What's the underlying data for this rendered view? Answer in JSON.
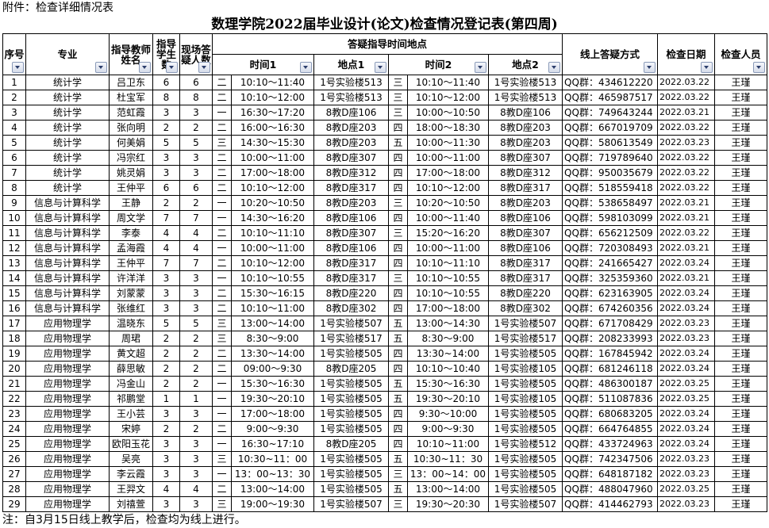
{
  "attachment_label": "附件：检查详细情况表",
  "title": "数理学院2022届毕业设计(论文)检查情况登记表(第四周)",
  "headers": {
    "seq": "序号",
    "major": "专业",
    "teacher": "指导教师姓名",
    "students": "指导学生数",
    "onsite": "现场答疑人数",
    "group": "答疑指导时间地点",
    "time1": "时间1",
    "place1": "地点1",
    "time2": "时间2",
    "place2": "地点2",
    "online": "线上答疑方式",
    "date": "检查日期",
    "inspector": "检查人员"
  },
  "rows": [
    [
      "1",
      "统计学",
      "吕卫东",
      "6",
      "6",
      "二",
      "10:10～11:40",
      "1号实验楼513",
      "三",
      "10:10～11:40",
      "1号实验楼513",
      "QQ群：434612220",
      "2022.03.22",
      "王瑾"
    ],
    [
      "2",
      "统计学",
      "杜宝军",
      "8",
      "8",
      "二",
      "10:10～12:00",
      "1号实验楼513",
      "三",
      "10:10～12:00",
      "1号实验楼513",
      "QQ群：465987517",
      "2022.03.22",
      "王瑾"
    ],
    [
      "3",
      "统计学",
      "范虹霞",
      "3",
      "3",
      "一",
      "16:30～17:20",
      "8教D座106",
      "三",
      "10:00～10:50",
      "8教D座106",
      "QQ群：749643244",
      "2022.03.21",
      "王瑾"
    ],
    [
      "4",
      "统计学",
      "张向明",
      "2",
      "2",
      "二",
      "16:00～16:30",
      "8教D座203",
      "四",
      "18:00～18:30",
      "8教D座203",
      "QQ群：667019709",
      "2022.03.22",
      "王瑾"
    ],
    [
      "5",
      "统计学",
      "何美娟",
      "5",
      "5",
      "三",
      "14:30～15:30",
      "8教D座203",
      "五",
      "10:00～11:30",
      "8教D座203",
      "QQ群：580613549",
      "2022.03.23",
      "王瑾"
    ],
    [
      "6",
      "统计学",
      "冯宗红",
      "3",
      "3",
      "二",
      "10:00～11:00",
      "8教D座307",
      "四",
      "10:00～11:00",
      "8教D座307",
      "QQ群：719789640",
      "2022.03.22",
      "王瑾"
    ],
    [
      "7",
      "统计学",
      "姚灵娟",
      "3",
      "3",
      "二",
      "17:00～18:00",
      "8教D座312",
      "四",
      "17:00～18:00",
      "8教D座312",
      "QQ群：950035679",
      "2022.03.22",
      "王瑾"
    ],
    [
      "8",
      "统计学",
      "王仲平",
      "6",
      "6",
      "二",
      "10:10～12:00",
      "8教D座317",
      "四",
      "10:10～12:00",
      "8教D座317",
      "QQ群：518559418",
      "2022.03.22",
      "王瑾"
    ],
    [
      "9",
      "信息与计算科学",
      "王静",
      "2",
      "2",
      "一",
      "10:20～10:50",
      "8教D座203",
      "三",
      "10:20～10:50",
      "8教D座203",
      "QQ群：538658497",
      "2022.03.21",
      "王瑾"
    ],
    [
      "10",
      "信息与计算科学",
      "周文学",
      "7",
      "7",
      "一",
      "14:30～16:20",
      "8教D座106",
      "四",
      "10:00～11:40",
      "8教D座106",
      "QQ群：598103099",
      "2022.03.21",
      "王瑾"
    ],
    [
      "11",
      "信息与计算科学",
      "李泰",
      "4",
      "4",
      "二",
      "10:10～11:10",
      "8教D座307",
      "三",
      "15:20～16:20",
      "8教D座307",
      "QQ群：656212509",
      "2022.03.22",
      "王瑾"
    ],
    [
      "12",
      "信息与计算科学",
      "孟海霞",
      "4",
      "4",
      "一",
      "10:00～11:00",
      "8教D座106",
      "四",
      "10:00～11:00",
      "8教D座106",
      "QQ群：720308493",
      "2022.03.21",
      "王瑾"
    ],
    [
      "13",
      "信息与计算科学",
      "王仲平",
      "7",
      "7",
      "二",
      "10:10～12:00",
      "8教D座317",
      "四",
      "10:10～11:10",
      "8教D座317",
      "QQ群：241665427",
      "2022.03.24",
      "王瑾"
    ],
    [
      "14",
      "信息与计算科学",
      "许洋洋",
      "3",
      "3",
      "一",
      "10:10～10:55",
      "8教D座317",
      "三",
      "10:10～10:55",
      "8教D座317",
      "QQ群：325359360",
      "2022.03.21",
      "王瑾"
    ],
    [
      "15",
      "信息与计算科学",
      "刘蒙蒙",
      "3",
      "3",
      "二",
      "15:30～16:15",
      "8教D座220",
      "四",
      "10:10～10:55",
      "8教D座220",
      "QQ群：623163905",
      "2022.03.24",
      "王瑾"
    ],
    [
      "16",
      "信息与计算科学",
      "张维红",
      "3",
      "3",
      "二",
      "10:10～11:00",
      "8教D座302",
      "四",
      "17:00～18:00",
      "8教D座302",
      "QQ群：674260356",
      "2022.03.24",
      "王瑾"
    ],
    [
      "17",
      "应用物理学",
      "温晓东",
      "5",
      "5",
      "三",
      "13:00～14:00",
      "1号实验楼507",
      "五",
      "13:00～14:30",
      "1号实验楼507",
      "QQ群：671708429",
      "2022.03.23",
      "王瑾"
    ],
    [
      "18",
      "应用物理学",
      "周珺",
      "2",
      "2",
      "三",
      "8:30～9:00",
      "1号实验楼517",
      "五",
      "8:30～9:00",
      "1号实验楼517",
      "QQ群：208233993",
      "2022.03.23",
      "王瑾"
    ],
    [
      "19",
      "应用物理学",
      "黄文超",
      "2",
      "2",
      "二",
      "13:30～14:00",
      "1号实验楼505",
      "四",
      "13:30~14:00",
      "1号实验楼505",
      "QQ群：167845942",
      "2022.03.24",
      "王瑾"
    ],
    [
      "20",
      "应用物理学",
      "薛思敏",
      "2",
      "2",
      "二",
      "09:00～9:30",
      "8教D座205",
      "四",
      "10:10～10:40",
      "1号实验楼105",
      "QQ群：681246118",
      "2022.03.24",
      "王瑾"
    ],
    [
      "21",
      "应用物理学",
      "冯金山",
      "2",
      "2",
      "一",
      "15:30～16:30",
      "1号实验楼505",
      "五",
      "15:30～16:30",
      "1号实验楼505",
      "QQ群：486300187",
      "2022.03.25",
      "王瑾"
    ],
    [
      "22",
      "应用物理学",
      "祁鹏堂",
      "1",
      "1",
      "一",
      "19:30～20:10",
      "1号实验楼505",
      "五",
      "19:30～20:10",
      "1号实验楼105",
      "QQ群：511087836",
      "2022.03.25",
      "王瑾"
    ],
    [
      "23",
      "应用物理学",
      "王小芸",
      "3",
      "3",
      "一",
      "17:00～18:00",
      "1号实验楼505",
      "四",
      "9:30～10:00",
      "1号实验楼505",
      "QQ群：680683205",
      "2022.03.24",
      "王瑾"
    ],
    [
      "24",
      "应用物理学",
      "宋婷",
      "2",
      "2",
      "二",
      "9:00～9:30",
      "1号实验楼505",
      "四",
      "9:00～9:30",
      "1号实验楼505",
      "QQ群：664764855",
      "2022.03.24",
      "王瑾"
    ],
    [
      "25",
      "应用物理学",
      "欧阳玉花",
      "3",
      "3",
      "一",
      "16:30~17:10",
      "8教D座205",
      "四",
      "10:10~11:00",
      "1号实验楼512",
      "QQ群：433724963",
      "2022.03.24",
      "王瑾"
    ],
    [
      "26",
      "应用物理学",
      "吴亮",
      "3",
      "3",
      "三",
      "10:30~11：00",
      "1号实验楼505",
      "五",
      "10:30~11：30",
      "1号实验楼505",
      "QQ群：742347506",
      "2022.03.23",
      "王瑾"
    ],
    [
      "27",
      "应用物理学",
      "李云霞",
      "3",
      "3",
      "一",
      "13：00~13：30",
      "1号实验楼505",
      "三",
      "13：00~14：00",
      "1号实验楼505",
      "QQ群：648187182",
      "2022.03.23",
      "王瑾"
    ],
    [
      "28",
      "应用物理学",
      "王羿文",
      "4",
      "4",
      "二",
      "13:00～14:00",
      "1号实验楼505",
      "五",
      "13:00～14:00",
      "1号实验楼505",
      "QQ群：488047960",
      "2022.03.25",
      "王瑾"
    ],
    [
      "29",
      "应用物理学",
      "刘禧萱",
      "3",
      "3",
      "三",
      "19:00～19:30",
      "1号实验楼507",
      "三",
      "19:30～20:30",
      "1号实验楼507",
      "QQ群：414462793",
      "2022.03.23",
      "王瑾"
    ]
  ],
  "note": "注：自3月15日线上教学后，检查均为线上进行。"
}
